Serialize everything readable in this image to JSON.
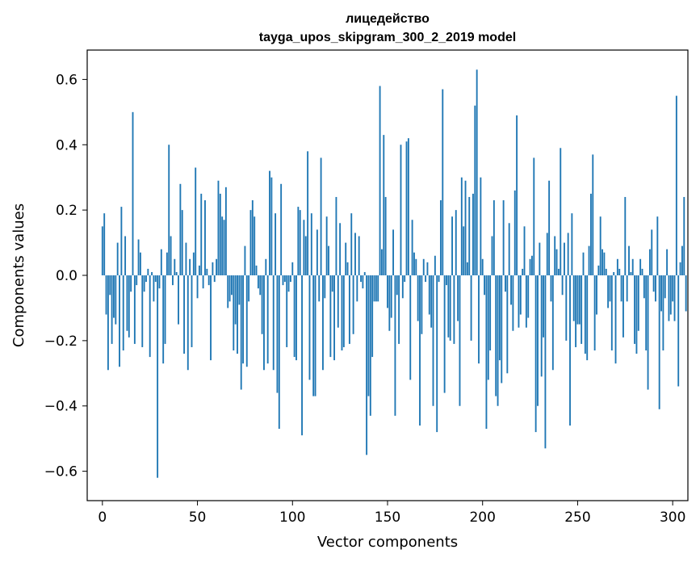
{
  "chart_data": {
    "type": "bar",
    "title": "лицедейство",
    "subtitle": "tayga_upos_skipgram_300_2_2019 model",
    "xlabel": "Vector components",
    "ylabel": "Components values",
    "xlim": [
      -8,
      308
    ],
    "ylim": [
      -0.69,
      0.69
    ],
    "xticks": [
      0,
      50,
      100,
      150,
      200,
      250,
      300
    ],
    "xtick_labels": [
      "0",
      "50",
      "100",
      "150",
      "200",
      "250",
      "300"
    ],
    "yticks": [
      -0.6,
      -0.4,
      -0.2,
      0.0,
      0.2,
      0.4,
      0.6
    ],
    "ytick_labels": [
      "−0.6",
      "−0.4",
      "−0.2",
      "0.0",
      "0.2",
      "0.4",
      "0.6"
    ],
    "grid": false,
    "bar_color": "#1f77b4",
    "values": [
      0.15,
      0.19,
      -0.12,
      -0.29,
      -0.06,
      -0.21,
      -0.13,
      -0.15,
      0.1,
      -0.28,
      0.21,
      -0.23,
      0.12,
      -0.17,
      -0.19,
      -0.05,
      0.5,
      -0.21,
      -0.03,
      0.11,
      0.07,
      -0.22,
      -0.05,
      -0.02,
      0.02,
      -0.25,
      0.01,
      -0.08,
      -0.02,
      -0.62,
      -0.04,
      0.08,
      -0.27,
      -0.21,
      0.07,
      0.4,
      0.12,
      -0.03,
      0.05,
      0.01,
      -0.15,
      0.28,
      0.2,
      -0.24,
      0.1,
      -0.29,
      0.05,
      -0.22,
      0.07,
      0.33,
      -0.07,
      0.03,
      0.25,
      -0.04,
      0.23,
      0.02,
      -0.03,
      -0.26,
      0.04,
      -0.02,
      0.05,
      0.29,
      0.25,
      0.18,
      0.17,
      0.27,
      -0.1,
      -0.08,
      -0.06,
      -0.23,
      -0.15,
      -0.24,
      -0.09,
      -0.35,
      -0.27,
      0.09,
      -0.28,
      -0.08,
      0.2,
      0.23,
      0.18,
      0.03,
      -0.04,
      -0.06,
      -0.18,
      -0.29,
      0.05,
      -0.27,
      0.32,
      0.3,
      -0.29,
      0.19,
      -0.36,
      -0.47,
      0.28,
      -0.03,
      -0.02,
      -0.22,
      -0.05,
      -0.02,
      0.04,
      -0.25,
      -0.26,
      0.21,
      0.2,
      -0.49,
      0.17,
      0.12,
      0.38,
      -0.32,
      0.19,
      -0.37,
      -0.37,
      0.14,
      -0.08,
      0.36,
      -0.29,
      -0.07,
      0.18,
      0.09,
      -0.25,
      -0.05,
      -0.26,
      0.24,
      -0.16,
      0.16,
      -0.23,
      -0.22,
      0.1,
      0.04,
      -0.21,
      0.19,
      -0.18,
      0.13,
      -0.08,
      0.12,
      -0.02,
      -0.04,
      0.01,
      -0.55,
      -0.37,
      -0.43,
      -0.25,
      -0.08,
      -0.08,
      -0.08,
      0.58,
      0.08,
      0.43,
      0.24,
      -0.1,
      -0.17,
      -0.13,
      0.14,
      -0.43,
      -0.06,
      -0.21,
      0.4,
      -0.07,
      -0.02,
      0.41,
      0.42,
      -0.32,
      0.17,
      0.07,
      0.05,
      -0.14,
      -0.46,
      -0.18,
      0.05,
      -0.02,
      0.04,
      -0.12,
      -0.16,
      -0.4,
      0.06,
      -0.48,
      -0.02,
      0.23,
      0.57,
      -0.36,
      -0.03,
      -0.19,
      -0.2,
      0.18,
      -0.21,
      0.2,
      -0.14,
      -0.4,
      0.3,
      0.15,
      0.29,
      0.04,
      0.24,
      -0.2,
      0.25,
      0.52,
      0.63,
      -0.27,
      0.3,
      0.05,
      -0.06,
      -0.47,
      -0.32,
      -0.23,
      0.12,
      0.23,
      -0.37,
      -0.4,
      -0.26,
      -0.33,
      0.23,
      -0.05,
      -0.3,
      0.16,
      -0.09,
      -0.17,
      0.26,
      0.49,
      -0.16,
      -0.12,
      0.02,
      0.15,
      -0.16,
      -0.13,
      0.05,
      0.06,
      0.36,
      -0.48,
      -0.4,
      0.1,
      -0.31,
      -0.19,
      -0.53,
      0.13,
      0.29,
      -0.08,
      -0.29,
      0.12,
      0.08,
      0.02,
      0.39,
      -0.06,
      0.1,
      -0.2,
      0.13,
      -0.46,
      0.19,
      -0.14,
      -0.22,
      -0.15,
      -0.15,
      -0.21,
      0.07,
      -0.24,
      -0.26,
      0.09,
      0.25,
      0.37,
      -0.23,
      -0.12,
      0.03,
      0.18,
      0.08,
      0.07,
      0.02,
      -0.1,
      -0.08,
      -0.23,
      0.01,
      -0.27,
      0.05,
      0.02,
      -0.08,
      -0.19,
      0.24,
      -0.08,
      0.09,
      0.01,
      0.05,
      -0.21,
      -0.24,
      -0.17,
      0.05,
      0.02,
      -0.07,
      -0.23,
      -0.35,
      0.08,
      0.14,
      -0.05,
      -0.08,
      0.18,
      -0.41,
      -0.11,
      -0.23,
      -0.07,
      0.08,
      -0.14,
      -0.12,
      -0.08,
      -0.14,
      0.55,
      -0.34,
      0.04,
      0.09,
      0.24,
      -0.11
    ]
  }
}
